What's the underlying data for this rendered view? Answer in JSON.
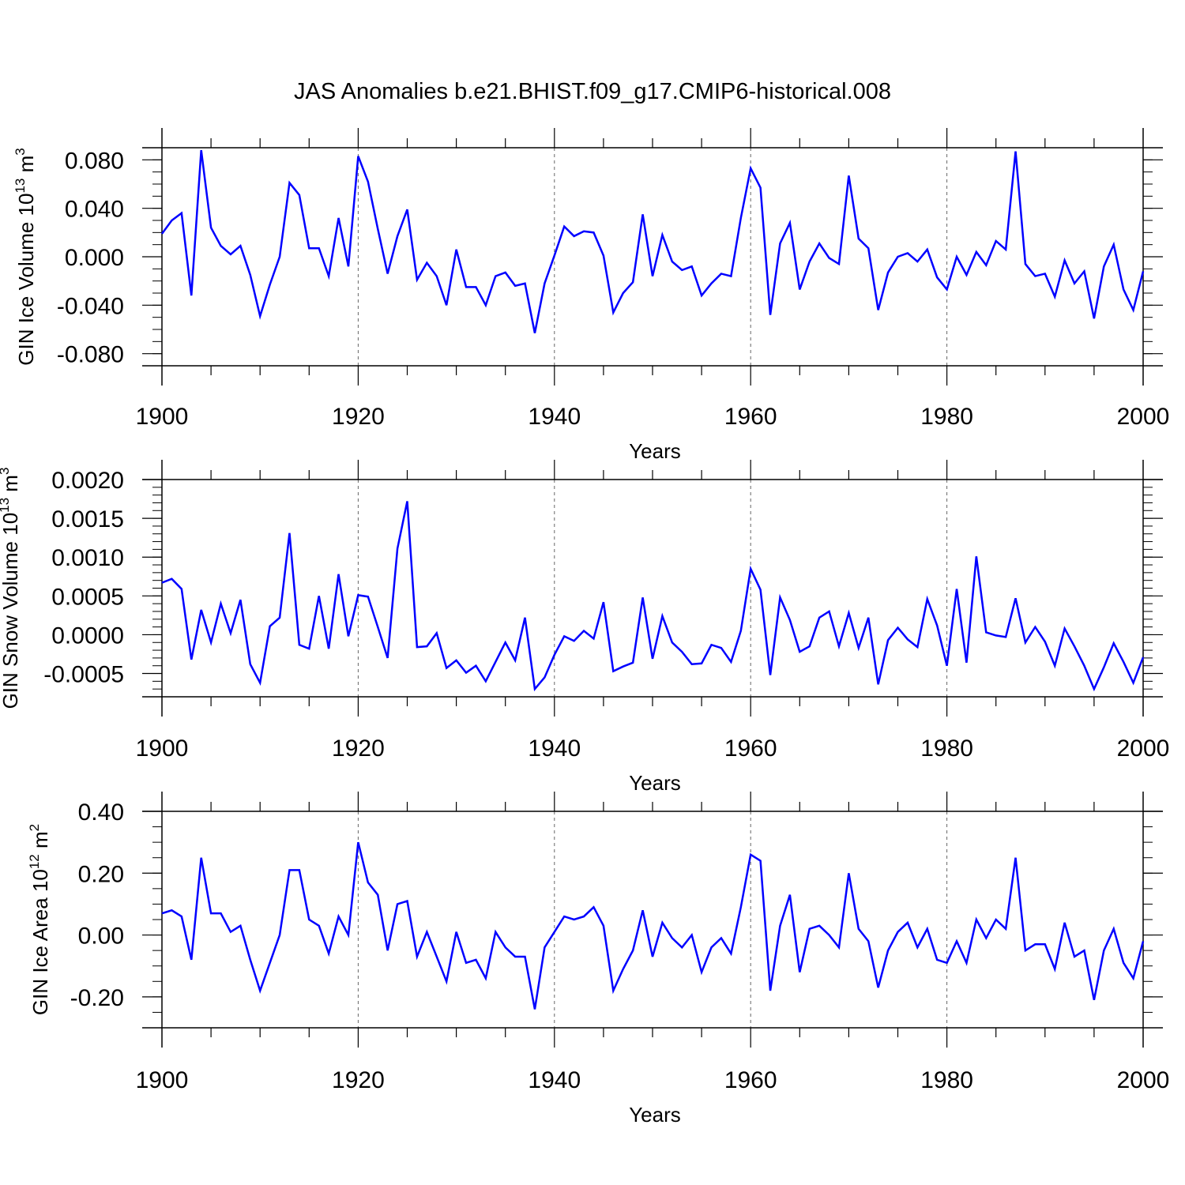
{
  "title": "JAS Anomalies b.e21.BHIST.f09_g17.CMIP6-historical.008",
  "colors": {
    "line": "#0000ff",
    "axis": "#000000",
    "grid": "#666666"
  },
  "chart_data": [
    {
      "type": "line",
      "ylabel_main": "GIN Ice Volume 10",
      "ylabel_exp": "13",
      "ylabel_unit": " m",
      "ylabel_unit_exp": "3",
      "xlabel": "Years",
      "xlim": [
        1900,
        2000
      ],
      "ylim": [
        -0.09,
        0.09
      ],
      "xticks": [
        "1900",
        "1920",
        "1940",
        "1960",
        "1980",
        "2000"
      ],
      "yticks": [
        "0.080",
        "0.040",
        "0.000",
        "-0.040",
        "-0.080"
      ],
      "ytick_values": [
        0.08,
        0.04,
        0.0,
        -0.04,
        -0.08
      ],
      "yminor_step": 0.01,
      "x_start": 1900,
      "values": [
        0.019,
        0.03,
        0.036,
        -0.032,
        0.088,
        0.024,
        0.009,
        0.002,
        0.009,
        -0.015,
        -0.049,
        -0.023,
        0.0,
        0.061,
        0.051,
        0.007,
        0.007,
        -0.016,
        0.032,
        -0.008,
        0.083,
        0.062,
        0.023,
        -0.014,
        0.017,
        0.039,
        -0.019,
        -0.005,
        -0.016,
        -0.04,
        0.006,
        -0.025,
        -0.025,
        -0.04,
        -0.016,
        -0.013,
        -0.024,
        -0.022,
        -0.063,
        -0.022,
        0.001,
        0.025,
        0.017,
        0.021,
        0.02,
        0.001,
        -0.046,
        -0.03,
        -0.021,
        0.035,
        -0.016,
        0.018,
        -0.004,
        -0.011,
        -0.008,
        -0.032,
        -0.022,
        -0.014,
        -0.016,
        0.032,
        0.073,
        0.057,
        -0.048,
        0.011,
        0.028,
        -0.027,
        -0.004,
        0.011,
        -0.001,
        -0.006,
        0.067,
        0.015,
        0.007,
        -0.044,
        -0.013,
        0.0,
        0.003,
        -0.004,
        0.006,
        -0.017,
        -0.027,
        0.0,
        -0.015,
        0.004,
        -0.007,
        0.013,
        0.006,
        0.087,
        -0.006,
        -0.016,
        -0.014,
        -0.033,
        -0.003,
        -0.022,
        -0.012,
        -0.051,
        -0.008,
        0.01,
        -0.027,
        -0.044,
        -0.012
      ]
    },
    {
      "type": "line",
      "ylabel_main": "GIN Snow Volume 10",
      "ylabel_exp": "13",
      "ylabel_unit": " m",
      "ylabel_unit_exp": "3",
      "xlabel": "Years",
      "xlim": [
        1900,
        2000
      ],
      "ylim": [
        -0.0008,
        0.002
      ],
      "xticks": [
        "1900",
        "1920",
        "1940",
        "1960",
        "1980",
        "2000"
      ],
      "yticks": [
        "0.0020",
        "0.0015",
        "0.0010",
        "0.0005",
        "0.0000",
        "-0.0005"
      ],
      "ytick_values": [
        0.002,
        0.0015,
        0.001,
        0.0005,
        0.0,
        -0.0005
      ],
      "yminor_step": 0.0001,
      "x_start": 1900,
      "values": [
        0.00067,
        0.00072,
        0.00059,
        -0.00032,
        0.00032,
        -0.0001,
        0.0004,
        2e-05,
        0.00045,
        -0.00038,
        -0.00062,
        0.00011,
        0.00022,
        0.00131,
        -0.00013,
        -0.00018,
        0.0005,
        -0.00018,
        0.00078,
        -2e-05,
        0.00051,
        0.00049,
        0.0001,
        -0.0003,
        0.00111,
        0.00172,
        -0.00016,
        -0.00015,
        2e-05,
        -0.00043,
        -0.00033,
        -0.00049,
        -0.0004,
        -0.0006,
        -0.00035,
        -0.0001,
        -0.00033,
        0.00022,
        -0.0007,
        -0.00055,
        -0.00026,
        -2e-05,
        -8e-05,
        5e-05,
        -5e-05,
        0.00042,
        -0.00047,
        -0.00041,
        -0.00036,
        0.00048,
        -0.00031,
        0.00024,
        -0.0001,
        -0.00022,
        -0.00038,
        -0.00037,
        -0.00013,
        -0.00017,
        -0.00035,
        5e-05,
        0.00085,
        0.00058,
        -0.00052,
        0.00048,
        0.00019,
        -0.00022,
        -0.00015,
        0.00022,
        0.0003,
        -0.00015,
        0.00028,
        -0.00017,
        0.00022,
        -0.00064,
        -7e-05,
        9e-05,
        -6e-05,
        -0.00016,
        0.00046,
        0.00012,
        -0.0004,
        0.00059,
        -0.00036,
        0.00101,
        3e-05,
        -1e-05,
        -3e-05,
        0.00047,
        -0.0001,
        0.0001,
        -9e-05,
        -0.0004,
        8e-05,
        -0.00015,
        -0.0004,
        -0.0007,
        -0.00042,
        -0.00011,
        -0.00035,
        -0.00062,
        -0.00029
      ]
    },
    {
      "type": "line",
      "ylabel_main": "GIN Ice Area 10",
      "ylabel_exp": "12",
      "ylabel_unit": " m",
      "ylabel_unit_exp": "2",
      "xlabel": "Years",
      "xlim": [
        1900,
        2000
      ],
      "ylim": [
        -0.3,
        0.4
      ],
      "xticks": [
        "1900",
        "1920",
        "1940",
        "1960",
        "1980",
        "2000"
      ],
      "yticks": [
        "0.40",
        "0.20",
        "0.00",
        "-0.20"
      ],
      "ytick_values": [
        0.4,
        0.2,
        0.0,
        -0.2
      ],
      "yminor_step": 0.05,
      "x_start": 1900,
      "values": [
        0.07,
        0.08,
        0.06,
        -0.08,
        0.25,
        0.07,
        0.07,
        0.01,
        0.03,
        -0.08,
        -0.18,
        -0.09,
        0.0,
        0.21,
        0.21,
        0.05,
        0.03,
        -0.06,
        0.06,
        0.0,
        0.3,
        0.17,
        0.13,
        -0.05,
        0.1,
        0.11,
        -0.07,
        0.01,
        -0.07,
        -0.15,
        0.01,
        -0.09,
        -0.08,
        -0.14,
        0.01,
        -0.04,
        -0.07,
        -0.07,
        -0.24,
        -0.04,
        0.01,
        0.06,
        0.05,
        0.06,
        0.09,
        0.03,
        -0.18,
        -0.11,
        -0.05,
        0.08,
        -0.07,
        0.04,
        -0.01,
        -0.04,
        0.0,
        -0.12,
        -0.04,
        -0.01,
        -0.06,
        0.09,
        0.26,
        0.24,
        -0.18,
        0.03,
        0.13,
        -0.12,
        0.02,
        0.03,
        0.0,
        -0.04,
        0.2,
        0.02,
        -0.02,
        -0.17,
        -0.05,
        0.01,
        0.04,
        -0.04,
        0.02,
        -0.08,
        -0.09,
        -0.02,
        -0.09,
        0.05,
        -0.01,
        0.05,
        0.02,
        0.25,
        -0.05,
        -0.03,
        -0.03,
        -0.11,
        0.04,
        -0.07,
        -0.05,
        -0.21,
        -0.05,
        0.02,
        -0.09,
        -0.14,
        -0.02
      ]
    }
  ]
}
